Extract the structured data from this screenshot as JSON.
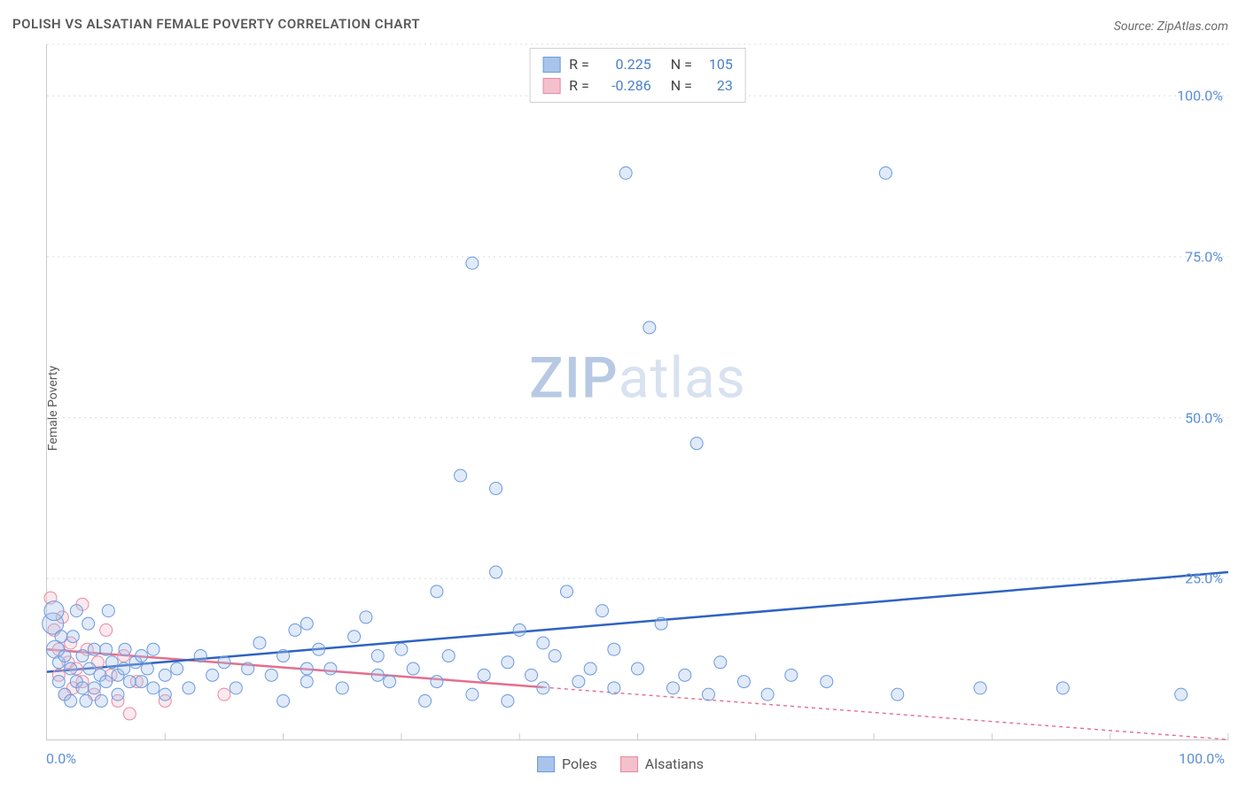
{
  "title": "POLISH VS ALSATIAN FEMALE POVERTY CORRELATION CHART",
  "source": "Source: ZipAtlas.com",
  "watermark": {
    "left": "ZIP",
    "right": "atlas"
  },
  "ylabel": "Female Poverty",
  "chart": {
    "type": "scatter",
    "background_color": "#ffffff",
    "grid_color": "#dcdcdc",
    "axis_color": "#c9c9c9",
    "tick_label_color": "#5b8fd6",
    "tick_label_fontsize": 16,
    "xlim": [
      0,
      100
    ],
    "ylim": [
      0,
      108
    ],
    "y_gridlines": [
      25,
      50,
      75,
      100,
      108
    ],
    "y_tick_labels": [
      {
        "v": 25,
        "label": "25.0%"
      },
      {
        "v": 50,
        "label": "50.0%"
      },
      {
        "v": 75,
        "label": "75.0%"
      },
      {
        "v": 100,
        "label": "100.0%"
      }
    ],
    "x_minor_ticks": [
      10,
      20,
      30,
      40,
      50,
      60,
      70,
      80,
      90,
      100
    ],
    "x_tick_labels": [
      {
        "v": 0,
        "label": "0.0%"
      },
      {
        "v": 100,
        "label": "100.0%"
      }
    ],
    "series": {
      "poles": {
        "label": "Poles",
        "color_fill": "#a9c4ea",
        "color_stroke": "#6a9adf",
        "marker_radius": 7,
        "N": 105,
        "R": "0.225",
        "trend": {
          "x1": 0,
          "y1": 10.5,
          "x2": 100,
          "y2": 26,
          "solid_until_x": 100,
          "color": "#2f63c1"
        },
        "points": [
          {
            "x": 0.5,
            "y": 18,
            "r": 12
          },
          {
            "x": 0.6,
            "y": 20,
            "r": 11
          },
          {
            "x": 0.7,
            "y": 14,
            "r": 10
          },
          {
            "x": 1,
            "y": 9
          },
          {
            "x": 1,
            "y": 12
          },
          {
            "x": 1.2,
            "y": 16
          },
          {
            "x": 1.5,
            "y": 7
          },
          {
            "x": 1.5,
            "y": 13
          },
          {
            "x": 2,
            "y": 6
          },
          {
            "x": 2,
            "y": 11
          },
          {
            "x": 2.2,
            "y": 16
          },
          {
            "x": 2.5,
            "y": 9
          },
          {
            "x": 2.5,
            "y": 20
          },
          {
            "x": 3,
            "y": 8
          },
          {
            "x": 3,
            "y": 13
          },
          {
            "x": 3.3,
            "y": 6
          },
          {
            "x": 3.5,
            "y": 18
          },
          {
            "x": 3.6,
            "y": 11
          },
          {
            "x": 4,
            "y": 8
          },
          {
            "x": 4,
            "y": 14
          },
          {
            "x": 4.5,
            "y": 10
          },
          {
            "x": 4.6,
            "y": 6
          },
          {
            "x": 5,
            "y": 14
          },
          {
            "x": 5,
            "y": 9
          },
          {
            "x": 5.2,
            "y": 20
          },
          {
            "x": 5.5,
            "y": 12
          },
          {
            "x": 6,
            "y": 10
          },
          {
            "x": 6,
            "y": 7
          },
          {
            "x": 6.5,
            "y": 11
          },
          {
            "x": 6.6,
            "y": 14
          },
          {
            "x": 7,
            "y": 9
          },
          {
            "x": 7.5,
            "y": 12
          },
          {
            "x": 8,
            "y": 9
          },
          {
            "x": 8,
            "y": 13
          },
          {
            "x": 8.5,
            "y": 11
          },
          {
            "x": 9,
            "y": 8
          },
          {
            "x": 9,
            "y": 14
          },
          {
            "x": 10,
            "y": 10
          },
          {
            "x": 10,
            "y": 7
          },
          {
            "x": 11,
            "y": 11
          },
          {
            "x": 12,
            "y": 8
          },
          {
            "x": 13,
            "y": 13
          },
          {
            "x": 14,
            "y": 10
          },
          {
            "x": 15,
            "y": 12
          },
          {
            "x": 16,
            "y": 8
          },
          {
            "x": 17,
            "y": 11
          },
          {
            "x": 18,
            "y": 15
          },
          {
            "x": 19,
            "y": 10
          },
          {
            "x": 20,
            "y": 13
          },
          {
            "x": 20,
            "y": 6
          },
          {
            "x": 21,
            "y": 17
          },
          {
            "x": 22,
            "y": 18
          },
          {
            "x": 22,
            "y": 11
          },
          {
            "x": 22,
            "y": 9
          },
          {
            "x": 23,
            "y": 14
          },
          {
            "x": 24,
            "y": 11
          },
          {
            "x": 25,
            "y": 8
          },
          {
            "x": 26,
            "y": 16
          },
          {
            "x": 27,
            "y": 19
          },
          {
            "x": 28,
            "y": 10
          },
          {
            "x": 28,
            "y": 13
          },
          {
            "x": 29,
            "y": 9
          },
          {
            "x": 30,
            "y": 14
          },
          {
            "x": 31,
            "y": 11
          },
          {
            "x": 32,
            "y": 6
          },
          {
            "x": 33,
            "y": 9
          },
          {
            "x": 33,
            "y": 23
          },
          {
            "x": 34,
            "y": 13
          },
          {
            "x": 35,
            "y": 41
          },
          {
            "x": 36,
            "y": 7
          },
          {
            "x": 36,
            "y": 74
          },
          {
            "x": 37,
            "y": 10
          },
          {
            "x": 38,
            "y": 39
          },
          {
            "x": 38,
            "y": 26
          },
          {
            "x": 39,
            "y": 12
          },
          {
            "x": 39,
            "y": 6
          },
          {
            "x": 40,
            "y": 17
          },
          {
            "x": 41,
            "y": 10
          },
          {
            "x": 42,
            "y": 8
          },
          {
            "x": 42,
            "y": 15
          },
          {
            "x": 43,
            "y": 13
          },
          {
            "x": 44,
            "y": 23
          },
          {
            "x": 45,
            "y": 9
          },
          {
            "x": 46,
            "y": 11
          },
          {
            "x": 47,
            "y": 20
          },
          {
            "x": 48,
            "y": 8
          },
          {
            "x": 48,
            "y": 14
          },
          {
            "x": 49,
            "y": 88
          },
          {
            "x": 50,
            "y": 11
          },
          {
            "x": 51,
            "y": 64
          },
          {
            "x": 52,
            "y": 18
          },
          {
            "x": 53,
            "y": 8
          },
          {
            "x": 54,
            "y": 10
          },
          {
            "x": 55,
            "y": 46
          },
          {
            "x": 56,
            "y": 7
          },
          {
            "x": 57,
            "y": 12
          },
          {
            "x": 59,
            "y": 9
          },
          {
            "x": 61,
            "y": 7
          },
          {
            "x": 63,
            "y": 10
          },
          {
            "x": 66,
            "y": 9
          },
          {
            "x": 71,
            "y": 88
          },
          {
            "x": 72,
            "y": 7
          },
          {
            "x": 79,
            "y": 8
          },
          {
            "x": 86,
            "y": 8
          },
          {
            "x": 96,
            "y": 7
          }
        ]
      },
      "alsatians": {
        "label": "Alsatians",
        "color_fill": "#f4c0cb",
        "color_stroke": "#e98aa2",
        "marker_radius": 7,
        "N": 23,
        "R": "-0.286",
        "trend": {
          "x1": 0,
          "y1": 14,
          "x2": 100,
          "y2": 0,
          "solid_until_x": 42,
          "color": "#e46f8d"
        },
        "points": [
          {
            "x": 0.3,
            "y": 22
          },
          {
            "x": 0.6,
            "y": 17
          },
          {
            "x": 1,
            "y": 14
          },
          {
            "x": 1,
            "y": 10
          },
          {
            "x": 1.3,
            "y": 19
          },
          {
            "x": 1.5,
            "y": 7
          },
          {
            "x": 1.8,
            "y": 12
          },
          {
            "x": 2,
            "y": 15
          },
          {
            "x": 2.2,
            "y": 8
          },
          {
            "x": 2.5,
            "y": 11
          },
          {
            "x": 3,
            "y": 9
          },
          {
            "x": 3,
            "y": 21
          },
          {
            "x": 3.4,
            "y": 14
          },
          {
            "x": 4,
            "y": 7
          },
          {
            "x": 4.3,
            "y": 12
          },
          {
            "x": 5,
            "y": 17
          },
          {
            "x": 5.4,
            "y": 10
          },
          {
            "x": 6,
            "y": 6
          },
          {
            "x": 6.5,
            "y": 13
          },
          {
            "x": 7,
            "y": 4
          },
          {
            "x": 7.6,
            "y": 9
          },
          {
            "x": 10,
            "y": 6
          },
          {
            "x": 15,
            "y": 7
          }
        ]
      }
    },
    "stats_box": {
      "rows": [
        {
          "series": "poles",
          "R_label": "R =",
          "N_label": "N ="
        },
        {
          "series": "alsatians",
          "R_label": "R =",
          "N_label": "N ="
        }
      ]
    },
    "bottom_legend": [
      {
        "series": "poles"
      },
      {
        "series": "alsatians"
      }
    ]
  }
}
